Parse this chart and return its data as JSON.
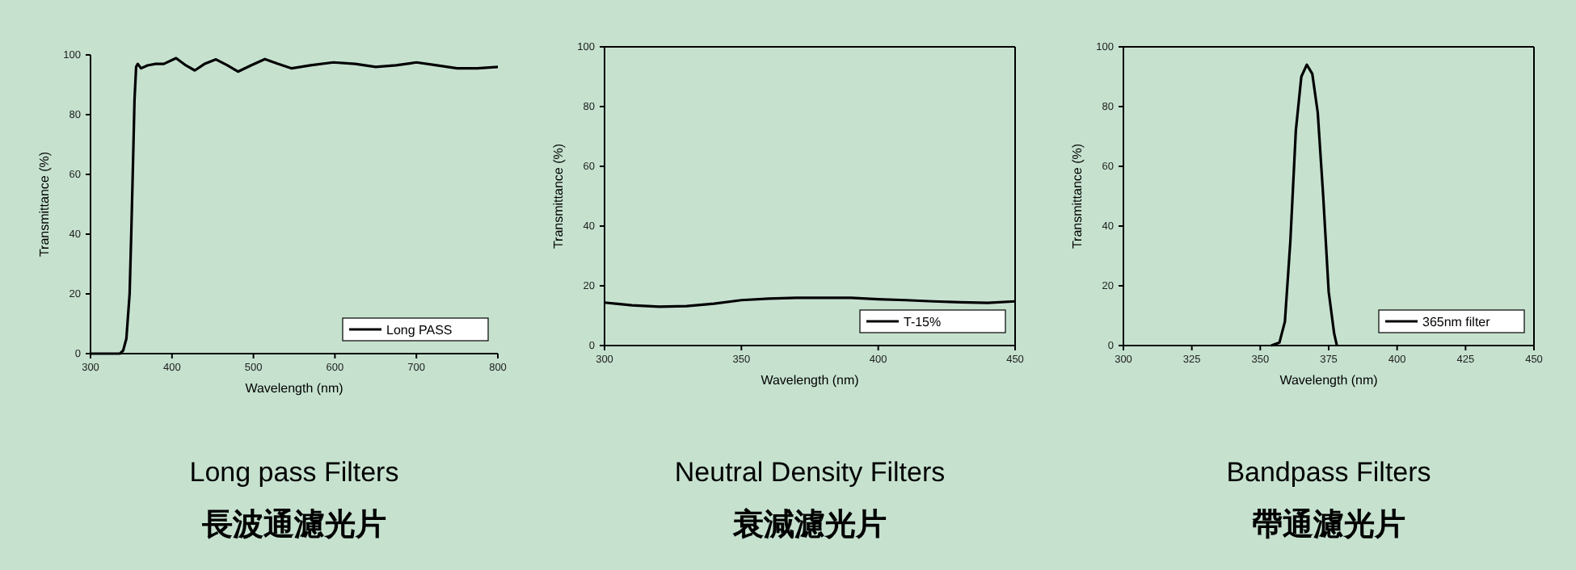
{
  "chart_data": [
    {
      "type": "line",
      "title": "Long pass Filters",
      "subtitle": "長波通濾光片",
      "xlabel": "Wavelength (nm)",
      "ylabel": "Transmittance (%)",
      "legend": "bottom right",
      "xlim": [
        300,
        800
      ],
      "ylim": [
        0,
        100
      ],
      "xticks": [
        300,
        400,
        500,
        600,
        700,
        800
      ],
      "yticks": [
        0,
        20,
        40,
        60,
        80,
        100
      ],
      "series": [
        {
          "name": "Long PASS",
          "color": "#000000",
          "x": [
            300,
            320,
            336,
            340,
            344,
            348,
            350,
            352,
            354,
            356,
            358,
            362,
            370,
            380,
            390,
            405,
            417,
            428,
            440,
            454,
            468,
            481,
            497,
            514,
            530,
            547,
            570,
            598,
            625,
            650,
            675,
            700,
            725,
            750,
            775,
            800
          ],
          "values": [
            0,
            0,
            0,
            1,
            5,
            20,
            40,
            62,
            85,
            96,
            97,
            95.5,
            96.5,
            97,
            97,
            98.9,
            96.5,
            94.8,
            97,
            98.5,
            96.5,
            94.4,
            96.5,
            98.6,
            97,
            95.5,
            96.5,
            97.5,
            97,
            96,
            96.5,
            97.5,
            96.5,
            95.5,
            95.5,
            96
          ]
        }
      ]
    },
    {
      "type": "line",
      "title": "Neutral Density Filters",
      "subtitle": "衰減濾光片",
      "xlabel": "Wavelength (nm)",
      "ylabel": "Transmittance (%)",
      "legend": "bottom right",
      "xlim": [
        300,
        450
      ],
      "ylim": [
        0,
        100
      ],
      "xticks": [
        300,
        350,
        400,
        450
      ],
      "yticks": [
        0,
        20,
        40,
        60,
        80,
        100
      ],
      "series": [
        {
          "name": "T-15%",
          "color": "#000000",
          "x": [
            300,
            310,
            320,
            330,
            340,
            350,
            360,
            370,
            380,
            390,
            400,
            410,
            420,
            430,
            440,
            450
          ],
          "values": [
            14.4,
            13.5,
            13,
            13.2,
            14,
            15.2,
            15.7,
            16,
            16,
            16,
            15.5,
            15.2,
            14.8,
            14.5,
            14.3,
            14.8
          ]
        }
      ]
    },
    {
      "type": "line",
      "title": "Bandpass Filters",
      "subtitle": "帶通濾光片",
      "xlabel": "Wavelength (nm)",
      "ylabel": "Transmittance (%)",
      "legend": "bottom right",
      "xlim": [
        300,
        450
      ],
      "ylim": [
        0,
        100
      ],
      "xticks": [
        300,
        325,
        350,
        375,
        400,
        425,
        450
      ],
      "yticks": [
        0,
        20,
        40,
        60,
        80,
        100
      ],
      "series": [
        {
          "name": "365nm filter",
          "color": "#000000",
          "x": [
            354,
            357,
            359,
            361,
            363,
            365,
            367,
            369,
            371,
            373,
            375,
            377,
            378
          ],
          "values": [
            0,
            1,
            8,
            35,
            72,
            90,
            94,
            91,
            78,
            50,
            18,
            4,
            0
          ]
        }
      ]
    }
  ]
}
